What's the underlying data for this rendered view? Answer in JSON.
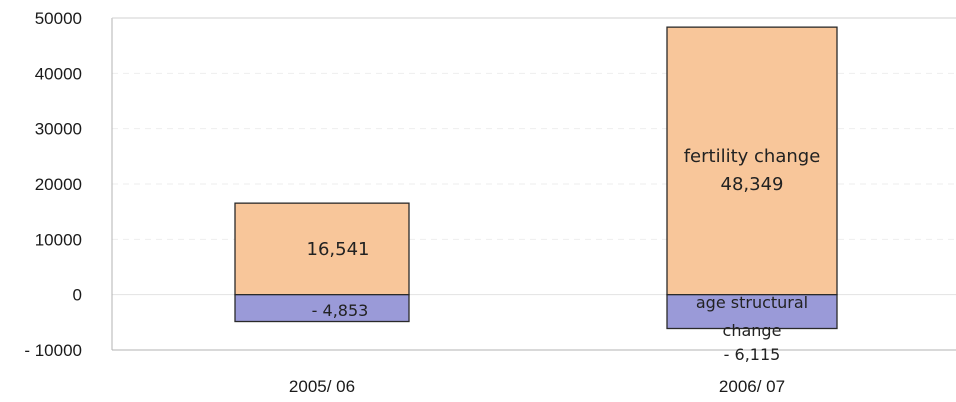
{
  "chart_data": {
    "type": "bar",
    "stacked": true,
    "categories": [
      "2005/ 06",
      "2006/ 07"
    ],
    "series": [
      {
        "name": "fertility change",
        "values": [
          16541,
          48349
        ],
        "color": "#F8C69A",
        "labels": [
          "16,541",
          "48,349"
        ]
      },
      {
        "name": "age structural change",
        "values": [
          -4853,
          -6115
        ],
        "color": "#9A9AD8",
        "labels": [
          "- 4,853",
          "- 6,115"
        ]
      }
    ],
    "annotations": {
      "fertility_label": "fertility change",
      "age_label_line1": "age structural",
      "age_label_line2": "change"
    },
    "yticks": [
      "50000",
      "40000",
      "30000",
      "20000",
      "10000",
      "0",
      "- 10000"
    ],
    "ylim": [
      -10000,
      50000
    ],
    "grid": true,
    "title": "",
    "xlabel": "",
    "ylabel": ""
  }
}
